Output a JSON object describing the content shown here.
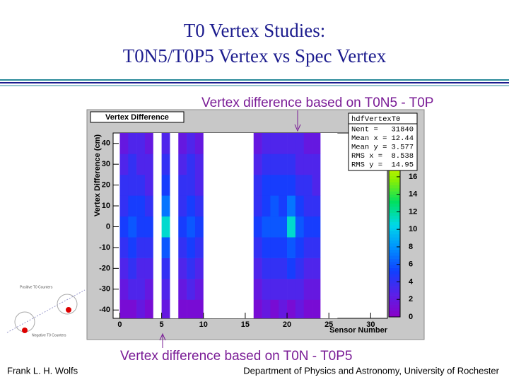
{
  "slide": {
    "title_lines": [
      "T0 Vertex Studies:",
      "T0N5/T0P5 Vertex vs Spec Vertex"
    ],
    "annotation_top": "Vertex difference based on T0N5 - T0P",
    "annotation_bottom": "Vertex difference based on T0N - T0P5",
    "footer_left": "Frank L. H. Wolfs",
    "footer_right": "Department of Physics and Astronomy, University of Rochester",
    "diagram_labels": [
      "Positive T0 Counters",
      "Negative T0 Counters"
    ]
  },
  "chart_data": {
    "type": "heatmap",
    "title": "Vertex Difference",
    "x_label": "Sensor Number",
    "y_label": "Vertex Difference (cm)",
    "xlim": [
      -0.8,
      32
    ],
    "ylim": [
      -44,
      45
    ],
    "xticks": [
      0,
      5,
      10,
      15,
      20,
      25,
      30
    ],
    "yticks": [
      -40,
      -30,
      -20,
      -10,
      0,
      10,
      20,
      30,
      40
    ],
    "xbins": [
      0,
      1,
      2,
      3,
      4,
      5,
      6,
      7,
      8,
      9,
      10,
      11,
      12,
      13,
      14,
      15,
      16,
      17,
      18,
      19,
      20,
      21,
      22,
      23,
      24,
      25,
      26
    ],
    "ybins": [
      -45,
      -35,
      -25,
      -15,
      -5,
      5,
      15,
      25,
      35,
      45
    ],
    "z": [
      [
        1,
        1,
        2,
        1,
        0,
        2,
        0,
        1,
        1,
        1,
        0,
        0,
        0,
        0,
        0,
        0,
        1,
        2,
        1,
        2,
        1,
        2,
        1,
        1,
        0,
        0
      ],
      [
        2,
        3,
        3,
        2,
        0,
        3,
        0,
        2,
        3,
        2,
        0,
        0,
        0,
        0,
        0,
        0,
        2,
        3,
        3,
        3,
        3,
        3,
        2,
        2,
        0,
        0
      ],
      [
        3,
        4,
        3,
        3,
        0,
        4,
        0,
        3,
        4,
        3,
        0,
        0,
        0,
        0,
        0,
        0,
        3,
        4,
        4,
        4,
        5,
        4,
        3,
        3,
        0,
        0
      ],
      [
        4,
        5,
        4,
        4,
        0,
        6,
        0,
        4,
        5,
        4,
        0,
        0,
        0,
        0,
        0,
        0,
        4,
        5,
        5,
        5,
        6,
        5,
        4,
        4,
        0,
        0
      ],
      [
        5,
        6,
        5,
        5,
        0,
        11,
        0,
        5,
        6,
        5,
        0,
        0,
        0,
        0,
        0,
        0,
        5,
        6,
        6,
        6,
        11,
        6,
        5,
        5,
        0,
        0
      ],
      [
        4,
        5,
        5,
        4,
        0,
        7,
        0,
        4,
        5,
        4,
        0,
        0,
        0,
        0,
        0,
        0,
        4,
        5,
        6,
        5,
        7,
        5,
        4,
        4,
        0,
        0
      ],
      [
        4,
        4,
        4,
        3,
        0,
        5,
        0,
        4,
        4,
        3,
        0,
        0,
        0,
        0,
        0,
        0,
        4,
        5,
        5,
        5,
        5,
        4,
        4,
        3,
        0,
        0
      ],
      [
        3,
        4,
        3,
        3,
        0,
        4,
        0,
        3,
        4,
        3,
        0,
        0,
        0,
        0,
        0,
        0,
        3,
        4,
        4,
        4,
        4,
        3,
        3,
        3,
        0,
        0
      ],
      [
        2,
        3,
        3,
        2,
        0,
        3,
        0,
        2,
        3,
        2,
        0,
        0,
        0,
        0,
        0,
        0,
        2,
        3,
        3,
        3,
        3,
        3,
        2,
        2,
        0,
        0
      ]
    ],
    "zlim": [
      0,
      21
    ],
    "zticks": [
      0,
      2,
      4,
      6,
      8,
      10,
      12,
      14,
      16
    ],
    "palette": [
      "#8a00c8",
      "#5a20e8",
      "#1040ff",
      "#0090ff",
      "#00d8e8",
      "#00e060",
      "#90f000",
      "#f0f000",
      "#ff8000"
    ],
    "empty_color": "#ffffff",
    "stats": {
      "title": "hdfVertexT0",
      "entries": [
        {
          "label": "Nent =",
          "value": 31840
        },
        {
          "label": "Mean x =",
          "value": 12.44
        },
        {
          "label": "Mean y =",
          "value": 3.577
        },
        {
          "label": "RMS x =",
          "value": 8.538
        },
        {
          "label": "RMS y =",
          "value": 14.95
        }
      ]
    }
  }
}
